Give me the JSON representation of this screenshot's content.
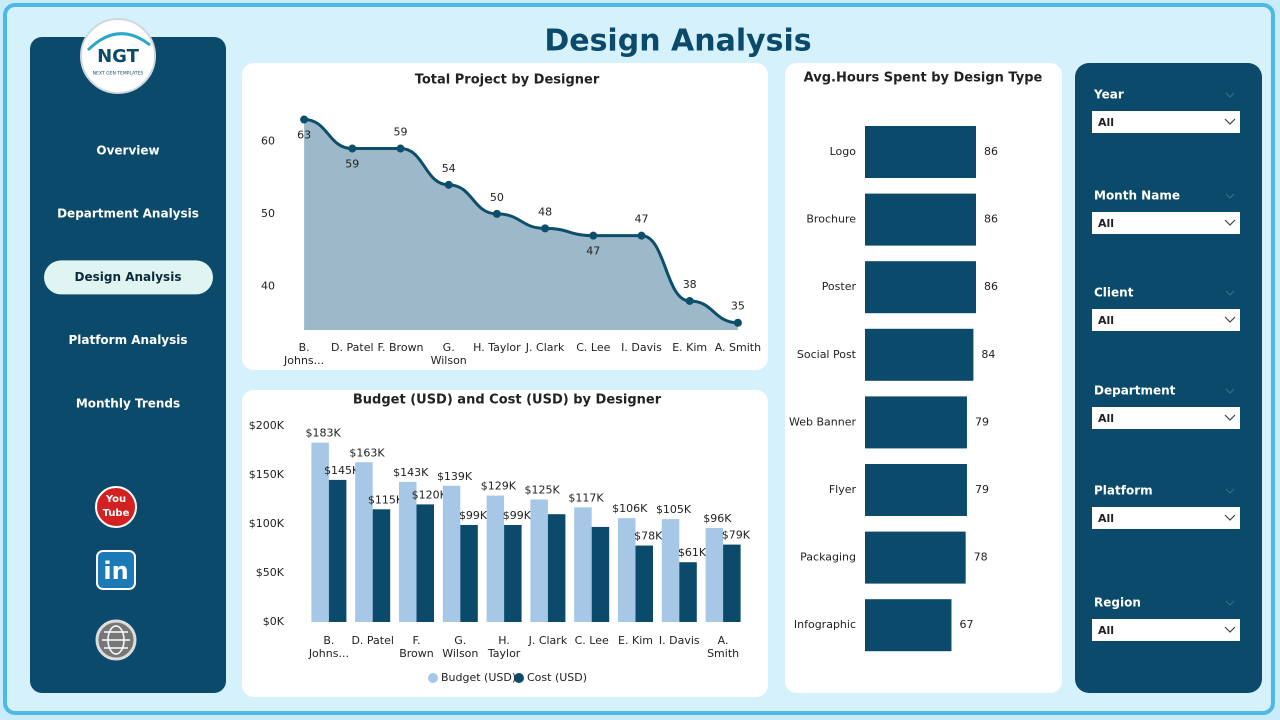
{
  "title": "Design Analysis",
  "logo": {
    "initials": "NGT",
    "tagline": "NEXT GEN TEMPLATES"
  },
  "nav": [
    {
      "label": "Overview",
      "active": false
    },
    {
      "label": "Department Analysis",
      "active": false
    },
    {
      "label": "Design Analysis",
      "active": true
    },
    {
      "label": "Platform Analysis",
      "active": false
    },
    {
      "label": "Monthly Trends",
      "active": false
    }
  ],
  "social": {
    "youtube_top": "You",
    "youtube_bottom": "Tube",
    "linkedin": "in"
  },
  "filters": [
    {
      "label": "Year",
      "value": "All"
    },
    {
      "label": "Month Name",
      "value": "All"
    },
    {
      "label": "Client",
      "value": "All"
    },
    {
      "label": "Department",
      "value": "All"
    },
    {
      "label": "Platform",
      "value": "All"
    },
    {
      "label": "Region",
      "value": "All"
    }
  ],
  "chart_data": [
    {
      "type": "area",
      "title": "Total Project by Designer",
      "categories": [
        "B. Johns...",
        "D. Patel",
        "F. Brown",
        "G. Wilson",
        "H. Taylor",
        "J. Clark",
        "C. Lee",
        "I. Davis",
        "E. Kim",
        "A. Smith"
      ],
      "values": [
        63,
        59,
        59,
        54,
        50,
        48,
        47,
        47,
        38,
        35
      ],
      "color": "#0d4e6b",
      "fill": "#9db9c9",
      "ylim": [
        34,
        65
      ],
      "yticks": [
        40,
        50,
        60
      ]
    },
    {
      "type": "grouped_bar",
      "title": "Budget (USD) and Cost (USD) by Designer",
      "categories": [
        "B. Johns...",
        "D. Patel",
        "F. Brown",
        "G. Wilson",
        "H. Taylor",
        "J. Clark",
        "C. Lee",
        "E. Kim",
        "I. Davis",
        "A. Smith"
      ],
      "series": [
        {
          "name": "Budget (USD)",
          "color": "#a7c7e7",
          "values": [
            183000,
            163000,
            143000,
            139000,
            129000,
            125000,
            117000,
            106000,
            105000,
            96000
          ],
          "value_labels": [
            "$183K",
            "$163K",
            "$143K",
            "$139K",
            "$129K",
            "$125K",
            "$117K",
            "$106K",
            "$105K",
            "$96K"
          ]
        },
        {
          "name": "Cost (USD)",
          "color": "#0b4a6b",
          "values": [
            145000,
            115000,
            120000,
            99000,
            99000,
            110000,
            97000,
            78000,
            61000,
            79000
          ],
          "value_labels": [
            "$145K",
            "$115K",
            "$120K",
            "$99K",
            "$99K",
            null,
            null,
            "$78K",
            "$61K",
            "$79K"
          ]
        }
      ],
      "ylim": [
        0,
        200000
      ],
      "yticks": [
        {
          "value": 0,
          "label": "$0K"
        },
        {
          "value": 50000,
          "label": "$50K"
        },
        {
          "value": 100000,
          "label": "$100K"
        },
        {
          "value": 150000,
          "label": "$150K"
        },
        {
          "value": 200000,
          "label": "$200K"
        }
      ],
      "legend": "bottom"
    },
    {
      "type": "hbar",
      "title": "Avg.Hours Spent by Design Type",
      "categories": [
        "Logo",
        "Brochure",
        "Poster",
        "Social Post",
        "Web Banner",
        "Flyer",
        "Packaging",
        "Infographic"
      ],
      "values": [
        86,
        86,
        86,
        84,
        79,
        79,
        78,
        67
      ],
      "color": "#0b4a6b"
    }
  ]
}
